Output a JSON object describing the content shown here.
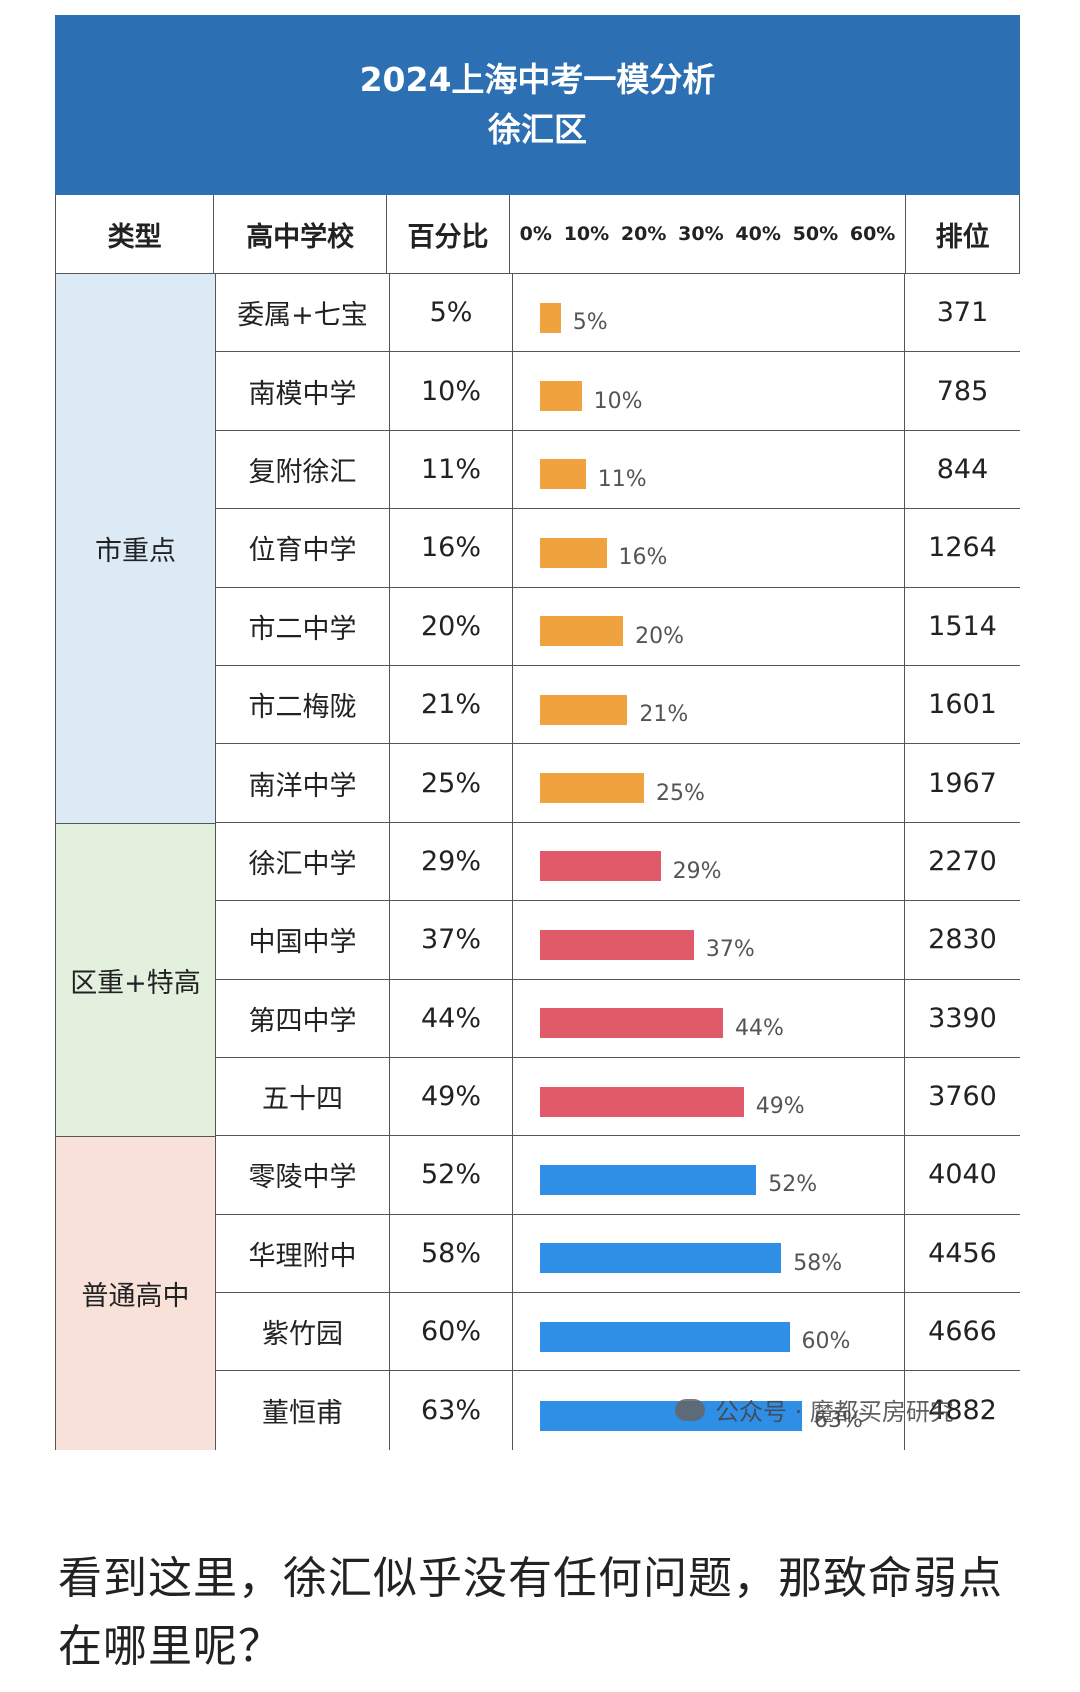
{
  "header": {
    "title": "2024上海中考一模分析",
    "subtitle": "徐汇区"
  },
  "columns": {
    "type": "类型",
    "school": "高中学校",
    "percent": "百分比",
    "rank": "排位"
  },
  "ticks": [
    "0%",
    "10%",
    "20%",
    "30%",
    "40%",
    "50%",
    "60%"
  ],
  "groups": [
    {
      "label": "市重点",
      "color": "#dceaf6",
      "bar_color": "#f0a23e",
      "rows": 7
    },
    {
      "label": "区重+特高",
      "color": "#e3f0dd",
      "bar_color": "#e05a6a",
      "rows": 4
    },
    {
      "label": "普通高中",
      "color": "#f8e1d8",
      "bar_color": "#2f8ee5",
      "rows": 4
    }
  ],
  "chart_data": {
    "type": "bar",
    "title": "2024上海中考一模分析",
    "subtitle": "徐汇区",
    "categories": [
      "委属+七宝",
      "南模中学",
      "复附徐汇",
      "位育中学",
      "市二中学",
      "市二梅陇",
      "南洋中学",
      "徐汇中学",
      "中国中学",
      "第四中学",
      "五十四",
      "零陵中学",
      "华理附中",
      "紫竹园",
      "董恒甫"
    ],
    "values": [
      5,
      10,
      11,
      16,
      20,
      21,
      25,
      29,
      37,
      44,
      49,
      52,
      58,
      60,
      63
    ],
    "value_labels": [
      "5%",
      "10%",
      "11%",
      "16%",
      "20%",
      "21%",
      "25%",
      "29%",
      "37%",
      "44%",
      "49%",
      "52%",
      "58%",
      "60%",
      "63%"
    ],
    "rank": [
      "371",
      "785",
      "844",
      "1264",
      "1514",
      "1601",
      "1967",
      "2270",
      "2830",
      "3390",
      "3760",
      "4040",
      "4456",
      "4666",
      "4882"
    ],
    "xlim": [
      0,
      63
    ]
  },
  "watermark": "公众号 · 魔都买房研究",
  "caption": "看到这里，徐汇似乎没有任何问题，那致命弱点在哪里呢？"
}
